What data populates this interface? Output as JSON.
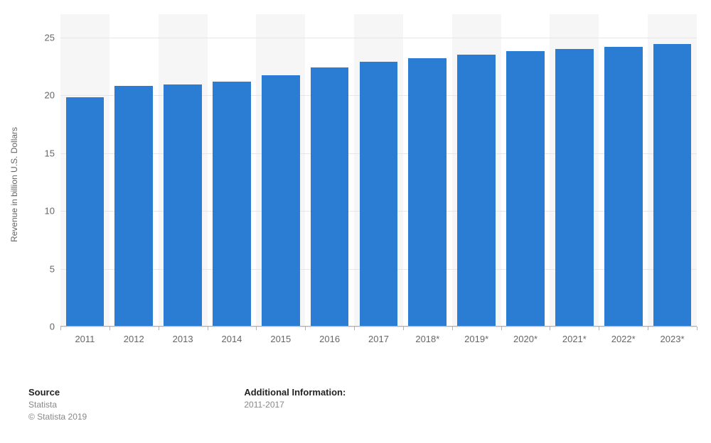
{
  "chart": {
    "type": "bar",
    "y_axis_label": "Revenue in billion U.S. Dollars",
    "categories": [
      "2011",
      "2012",
      "2013",
      "2014",
      "2015",
      "2016",
      "2017",
      "2018*",
      "2019*",
      "2020*",
      "2021*",
      "2022*",
      "2023*"
    ],
    "values": [
      19.8,
      20.8,
      20.9,
      21.2,
      21.7,
      22.4,
      22.9,
      23.2,
      23.5,
      23.8,
      24.0,
      24.2,
      24.4
    ],
    "bar_color": "#2b7cd3",
    "ylim": [
      0,
      27
    ],
    "yticks": [
      0,
      5,
      10,
      15,
      20,
      25
    ],
    "grid_color": "#e6e6e6",
    "background_color": "#ffffff",
    "alt_band_color": "#f6f6f6",
    "axis_text_color": "#666666",
    "label_fontsize": 12,
    "tick_fontsize": 13,
    "bar_width_ratio": 0.78
  },
  "footer": {
    "source_title": "Source",
    "source_name": "Statista",
    "copyright": "© Statista 2019",
    "info_title": "Additional Information:",
    "info_text": "2011-2017"
  }
}
